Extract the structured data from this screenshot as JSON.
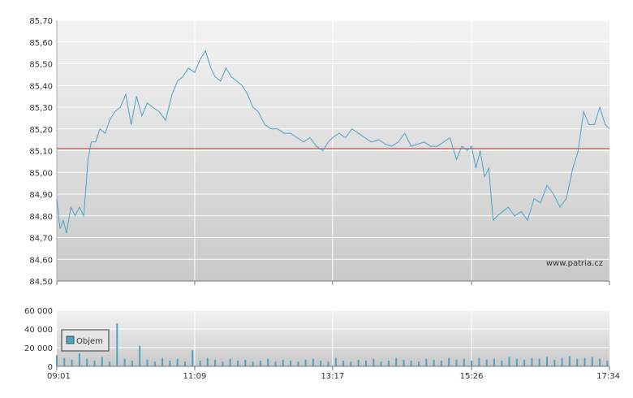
{
  "colors": {
    "line": "#4ba3c7",
    "volume": "#4ba3c7",
    "reference": "#d83030",
    "grid": "#ffffff",
    "axis": "#777777"
  },
  "watermark": "www.patria.cz",
  "chart_data": [
    {
      "type": "line",
      "title": "",
      "xlabel": "",
      "ylabel": "",
      "ylim": [
        84.5,
        85.7
      ],
      "y_ticks": [
        "84,50",
        "84,60",
        "84,70",
        "84,80",
        "84,90",
        "85,00",
        "85,10",
        "85,20",
        "85,30",
        "85,40",
        "85,50",
        "85,60",
        "85,70"
      ],
      "x_ticks": [
        "09:01",
        "11:09",
        "13:17",
        "15:26",
        "17:34"
      ],
      "reference_line": 85.11,
      "grid": true,
      "series": [
        {
          "x": [
            "09:01",
            "09:04",
            "09:07",
            "09:10",
            "09:14",
            "09:18",
            "09:22",
            "09:26",
            "09:30",
            "09:33",
            "09:37",
            "09:41",
            "09:46",
            "09:50",
            "09:55",
            "10:00",
            "10:05",
            "10:10",
            "10:15",
            "10:20",
            "10:25",
            "10:30",
            "10:36",
            "10:42",
            "10:48",
            "10:53",
            "10:58",
            "11:03",
            "11:09",
            "11:14",
            "11:19",
            "11:24",
            "11:28",
            "11:33",
            "11:38",
            "11:43",
            "11:48",
            "11:53",
            "11:58",
            "12:03",
            "12:08",
            "12:14",
            "12:20",
            "12:26",
            "12:32",
            "12:38",
            "12:44",
            "12:50",
            "12:56",
            "13:02",
            "13:08",
            "13:13",
            "13:17",
            "13:23",
            "13:29",
            "13:35",
            "13:41",
            "13:47",
            "13:53",
            "14:00",
            "14:06",
            "14:12",
            "14:18",
            "14:24",
            "14:30",
            "14:36",
            "14:42",
            "14:48",
            "14:54",
            "15:00",
            "15:06",
            "15:12",
            "15:17",
            "15:22",
            "15:26",
            "15:30",
            "15:34",
            "15:38",
            "15:42",
            "15:46",
            "15:50",
            "15:55",
            "16:00",
            "16:06",
            "16:12",
            "16:18",
            "16:24",
            "16:30",
            "16:36",
            "16:42",
            "16:48",
            "16:54",
            "17:00",
            "17:05",
            "17:10",
            "17:15",
            "17:20",
            "17:25",
            "17:30",
            "17:34"
          ],
          "values": [
            84.88,
            84.74,
            84.78,
            84.72,
            84.84,
            84.8,
            84.84,
            84.8,
            85.06,
            85.14,
            85.14,
            85.2,
            85.18,
            85.24,
            85.28,
            85.3,
            85.36,
            85.22,
            85.35,
            85.26,
            85.32,
            85.3,
            85.28,
            85.24,
            85.36,
            85.42,
            85.44,
            85.48,
            85.46,
            85.52,
            85.56,
            85.48,
            85.44,
            85.42,
            85.48,
            85.44,
            85.42,
            85.4,
            85.36,
            85.3,
            85.28,
            85.22,
            85.2,
            85.2,
            85.18,
            85.18,
            85.16,
            85.14,
            85.16,
            85.12,
            85.1,
            85.14,
            85.16,
            85.18,
            85.16,
            85.2,
            85.18,
            85.16,
            85.14,
            85.15,
            85.13,
            85.12,
            85.14,
            85.18,
            85.12,
            85.13,
            85.14,
            85.12,
            85.12,
            85.14,
            85.16,
            85.06,
            85.12,
            85.1,
            85.12,
            85.02,
            85.1,
            84.98,
            85.02,
            84.78,
            84.8,
            84.82,
            84.84,
            84.8,
            84.82,
            84.78,
            84.88,
            84.86,
            84.94,
            84.9,
            84.84,
            84.88,
            85.02,
            85.1,
            85.28,
            85.22,
            85.22,
            85.3,
            85.22,
            85.2
          ]
        }
      ]
    },
    {
      "type": "bar",
      "title": "",
      "ylabel": "",
      "ylim": [
        0,
        60000
      ],
      "y_ticks": [
        "0",
        "20 000",
        "40 000",
        "60 000"
      ],
      "x_ticks": [
        "09:01",
        "11:09",
        "13:17",
        "15:26",
        "17:34"
      ],
      "legend": "top-left",
      "series": [
        {
          "name": "Objem",
          "x": [
            "09:01",
            "09:08",
            "09:15",
            "09:22",
            "09:29",
            "09:36",
            "09:43",
            "09:50",
            "09:57",
            "10:04",
            "10:11",
            "10:18",
            "10:25",
            "10:32",
            "10:39",
            "10:46",
            "10:53",
            "11:00",
            "11:07",
            "11:14",
            "11:21",
            "11:28",
            "11:35",
            "11:42",
            "11:49",
            "11:56",
            "12:03",
            "12:10",
            "12:17",
            "12:24",
            "12:31",
            "12:38",
            "12:45",
            "12:52",
            "12:59",
            "13:06",
            "13:13",
            "13:20",
            "13:27",
            "13:34",
            "13:41",
            "13:48",
            "13:55",
            "14:02",
            "14:09",
            "14:16",
            "14:23",
            "14:30",
            "14:37",
            "14:44",
            "14:51",
            "14:58",
            "15:05",
            "15:12",
            "15:19",
            "15:26",
            "15:33",
            "15:40",
            "15:47",
            "15:54",
            "16:01",
            "16:08",
            "16:15",
            "16:22",
            "16:29",
            "16:36",
            "16:43",
            "16:50",
            "16:57",
            "17:04",
            "17:11",
            "17:18",
            "17:25",
            "17:32"
          ],
          "values": [
            12000,
            9000,
            7000,
            14000,
            8000,
            6000,
            10000,
            5000,
            46000,
            8000,
            6000,
            22000,
            7000,
            5000,
            9000,
            6000,
            8000,
            5000,
            17000,
            6000,
            9000,
            7000,
            5000,
            8000,
            6000,
            7000,
            5000,
            6000,
            8000,
            5000,
            7000,
            6000,
            5000,
            7000,
            8000,
            6000,
            5000,
            9000,
            6000,
            5000,
            7000,
            6000,
            8000,
            5000,
            6000,
            9000,
            7000,
            6000,
            5000,
            8000,
            7000,
            6000,
            9000,
            7000,
            8000,
            6000,
            9000,
            7000,
            8000,
            6000,
            10000,
            8000,
            7000,
            9000,
            8000,
            10000,
            7000,
            9000,
            11000,
            8000,
            9000,
            10000,
            8000,
            6000
          ]
        }
      ]
    }
  ]
}
